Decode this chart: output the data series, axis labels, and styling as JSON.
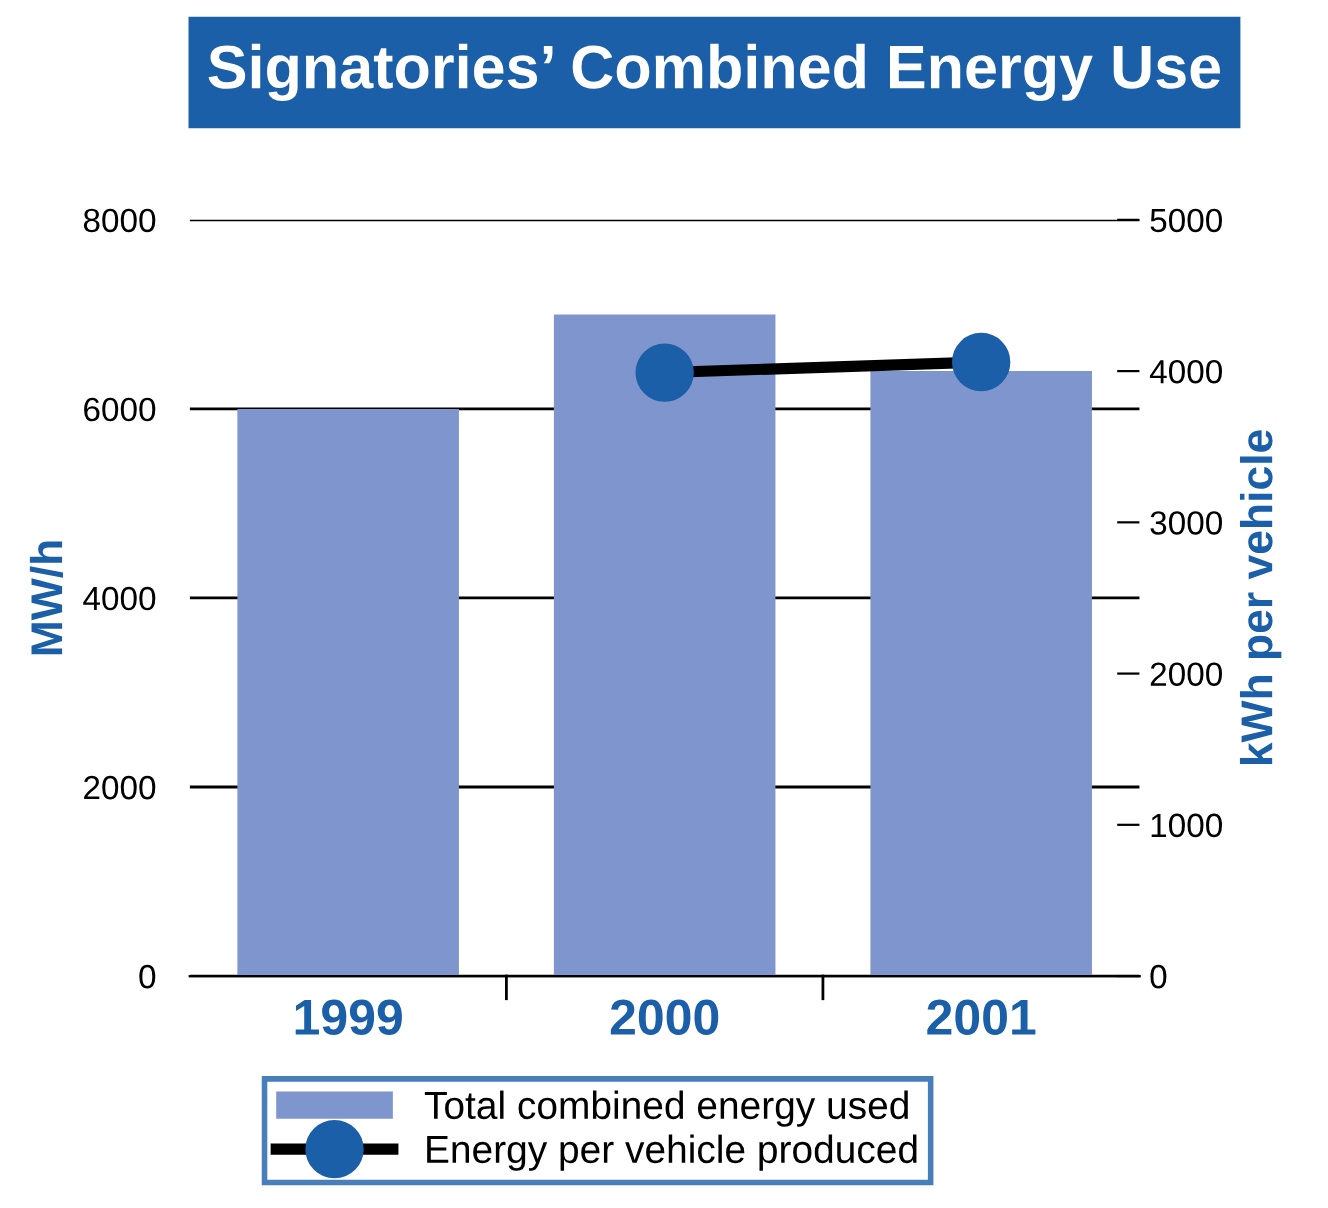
{
  "chart_data": {
    "type": "bar",
    "title": "Signatories’ Combined Energy Use",
    "ylabel": "MW/h",
    "y2label": "kWh per vehicle",
    "categories": [
      "1999",
      "2000",
      "2001"
    ],
    "series": [
      {
        "name": "Total combined energy used",
        "color": "#7f95cd",
        "values": [
          6000,
          7000,
          6400
        ]
      },
      {
        "name": "Energy per vehicle produced",
        "type": "line",
        "axis": "y2",
        "color": "#1b5fa8",
        "marker": "circle",
        "values": [
          null,
          3990,
          4060
        ]
      }
    ],
    "ylim": [
      0,
      8000
    ],
    "yticks": [
      0,
      2000,
      4000,
      6000,
      8000
    ],
    "y2lim": [
      0,
      5000
    ],
    "y2ticks": [
      0,
      1000,
      2000,
      3000,
      4000,
      5000
    ],
    "grid": "y",
    "legend": "bottom"
  }
}
